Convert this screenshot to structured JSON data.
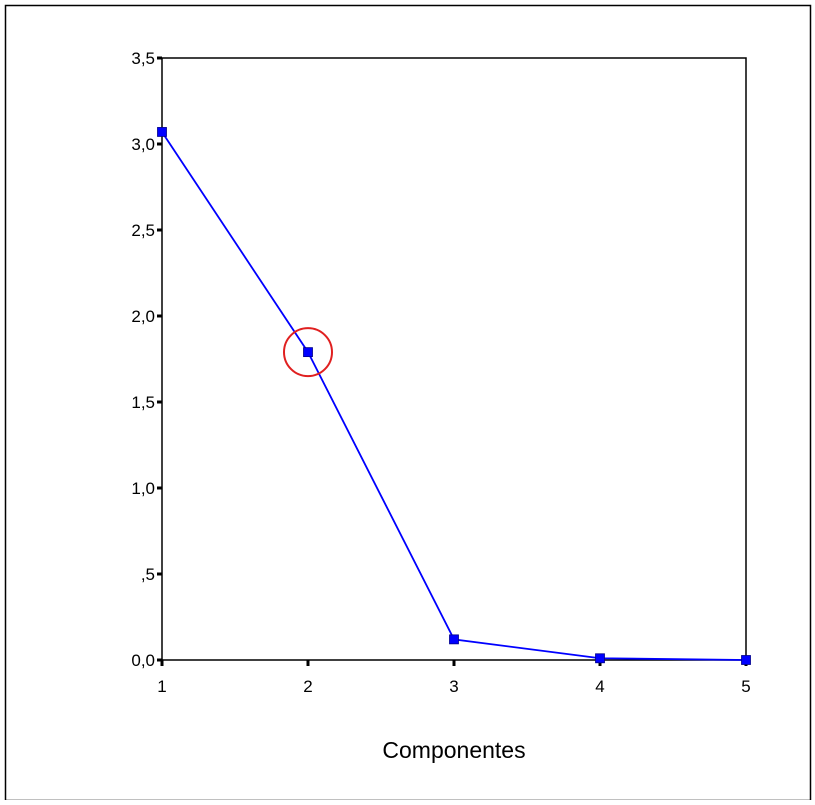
{
  "chart_data": {
    "type": "line",
    "x": [
      1,
      2,
      3,
      4,
      5
    ],
    "values": [
      3.07,
      1.79,
      0.12,
      0.01,
      0.0
    ],
    "xlabel": "Componentes",
    "ylabel": "",
    "xlim": [
      1,
      5
    ],
    "ylim": [
      0,
      3.5
    ],
    "x_tick_labels": [
      "1",
      "2",
      "3",
      "4",
      "5"
    ],
    "y_ticks": [
      0,
      0.5,
      1.0,
      1.5,
      2.0,
      2.5,
      3.0,
      3.5
    ],
    "y_tick_labels": [
      "0,0",
      ",5",
      "1,0",
      "1,5",
      "2,0",
      "2,5",
      "3,0",
      "3,5"
    ],
    "grid": false,
    "legend": "none",
    "highlight": {
      "x": 2,
      "y": 1.79,
      "shape": "circle"
    }
  },
  "colors": {
    "line": "#0000ff",
    "marker": "#0000ff",
    "highlight": "#e02020",
    "axis": "#000000",
    "frame": "#000000",
    "background": "#ffffff"
  }
}
